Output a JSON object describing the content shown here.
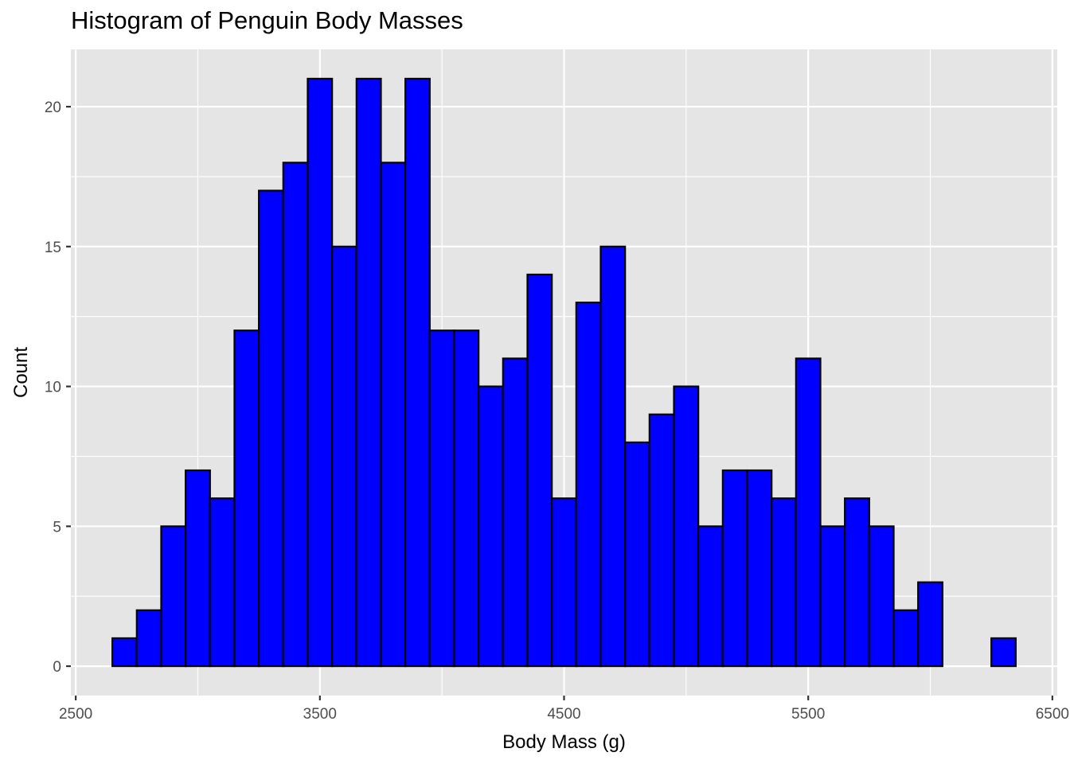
{
  "chart_data": {
    "type": "bar",
    "title": "Histogram of Penguin Body Masses",
    "xlabel": "Body Mass (g)",
    "ylabel": "Count",
    "bin_width": 100,
    "bin_starts": [
      2650,
      2750,
      2850,
      2950,
      3050,
      3150,
      3250,
      3350,
      3450,
      3550,
      3650,
      3750,
      3850,
      3950,
      4050,
      4150,
      4250,
      4350,
      4450,
      4550,
      4650,
      4750,
      4850,
      4950,
      5050,
      5150,
      5250,
      5350,
      5450,
      5550,
      5650,
      5750,
      5850,
      5950,
      6050,
      6150,
      6250
    ],
    "values": [
      1,
      2,
      5,
      7,
      6,
      12,
      17,
      18,
      21,
      15,
      21,
      18,
      21,
      12,
      12,
      10,
      11,
      14,
      6,
      13,
      15,
      8,
      9,
      10,
      5,
      7,
      7,
      6,
      11,
      5,
      6,
      5,
      2,
      3,
      0,
      0,
      1
    ],
    "xlim": [
      2480,
      6520
    ],
    "ylim": [
      -1.05,
      22.05
    ],
    "x_ticks": [
      2500,
      3500,
      4500,
      5500,
      6500
    ],
    "y_ticks": [
      0,
      5,
      10,
      15,
      20
    ],
    "grid": true,
    "colors": {
      "bar_fill": "#0000ff",
      "bar_outline": "#000000",
      "panel": "#e5e5e5",
      "grid": "#ffffff"
    }
  }
}
